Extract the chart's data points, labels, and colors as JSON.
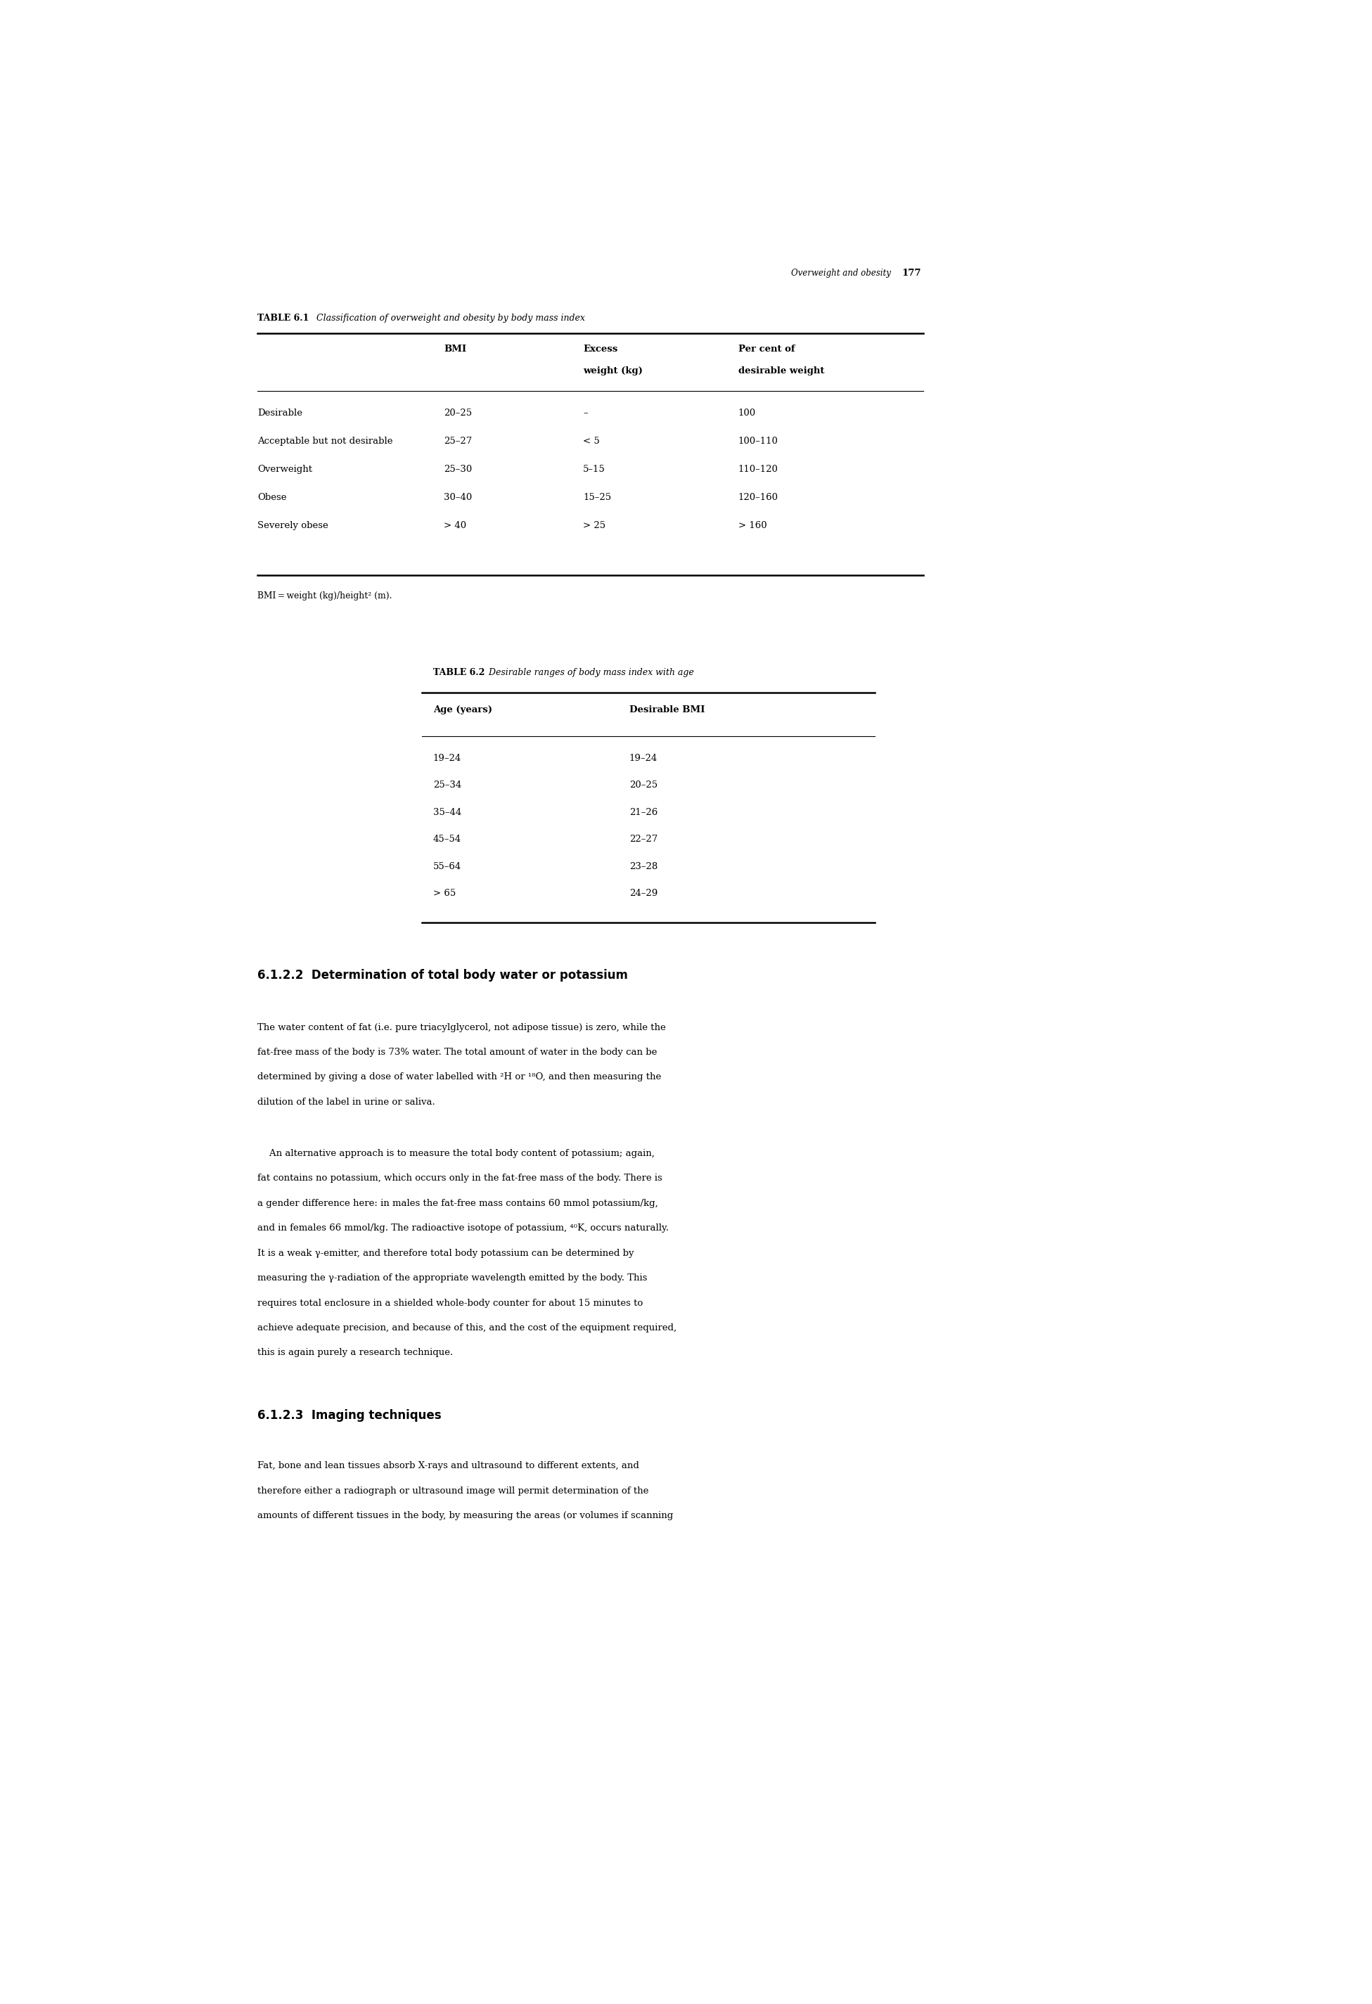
{
  "page_width": 19.51,
  "page_height": 28.5,
  "bg_color": "#ffffff",
  "header_italic": "Overweight and obesity",
  "header_page": "177",
  "table1_title_bold": "TABLE 6.1",
  "table1_title_italic": "  Classification of overweight and obesity by body mass index",
  "table1_col_headers_line1": [
    "",
    "BMI",
    "Excess",
    "Per cent of"
  ],
  "table1_col_headers_line2": [
    "",
    "",
    "weight (kg)",
    "desirable weight"
  ],
  "table1_rows": [
    [
      "Desirable",
      "20–25",
      "–",
      "100"
    ],
    [
      "Acceptable but not desirable",
      "25–27",
      "< 5",
      "100–110"
    ],
    [
      "Overweight",
      "25–30",
      "5–15",
      "110–120"
    ],
    [
      "Obese",
      "30–40",
      "15–25",
      "120–160"
    ],
    [
      "Severely obese",
      "> 40",
      "> 25",
      "> 160"
    ]
  ],
  "table1_footnote": "BMI = weight (kg)/height² (m).",
  "table2_title_bold": "TABLE 6.2",
  "table2_title_italic": "  Desirable ranges of body mass index with age",
  "table2_col_headers": [
    "Age (years)",
    "Desirable BMI"
  ],
  "table2_rows": [
    [
      "19–24",
      "19–24"
    ],
    [
      "25–34",
      "20–25"
    ],
    [
      "35–44",
      "21–26"
    ],
    [
      "45–54",
      "22–27"
    ],
    [
      "55–64",
      "23–28"
    ],
    [
      "> 65",
      "24–29"
    ]
  ],
  "section_heading": "6.1.2.2  Determination of total body water or potassium",
  "para1_lines": [
    "The water content of fat (i.e. pure triacylglycerol, not adipose tissue) is zero, while the",
    "fat-free mass of the body is 73% water. The total amount of water in the body can be",
    "determined by giving a dose of water labelled with ²H or ¹⁸O, and then measuring the",
    "dilution of the label in urine or saliva."
  ],
  "para2_lines": [
    "    An alternative approach is to measure the total body content of potassium; again,",
    "fat contains no potassium, which occurs only in the fat-free mass of the body. There is",
    "a gender difference here: in males the fat-free mass contains 60 mmol potassium/kg,",
    "and in females 66 mmol/kg. The radioactive isotope of potassium, ⁴⁰K, occurs naturally.",
    "It is a weak γ-emitter, and therefore total body potassium can be determined by",
    "measuring the γ-radiation of the appropriate wavelength emitted by the body. This",
    "requires total enclosure in a shielded whole-body counter for about 15 minutes to",
    "achieve adequate precision, and because of this, and the cost of the equipment required,",
    "this is again purely a research technique."
  ],
  "section2_heading": "6.1.2.3  Imaging techniques",
  "para3_lines": [
    "Fat, bone and lean tissues absorb X-rays and ultrasound to different extents, and",
    "therefore either a radiograph or ultrasound image will permit determination of the",
    "amounts of different tissues in the body, by measuring the areas (or volumes if scanning"
  ]
}
